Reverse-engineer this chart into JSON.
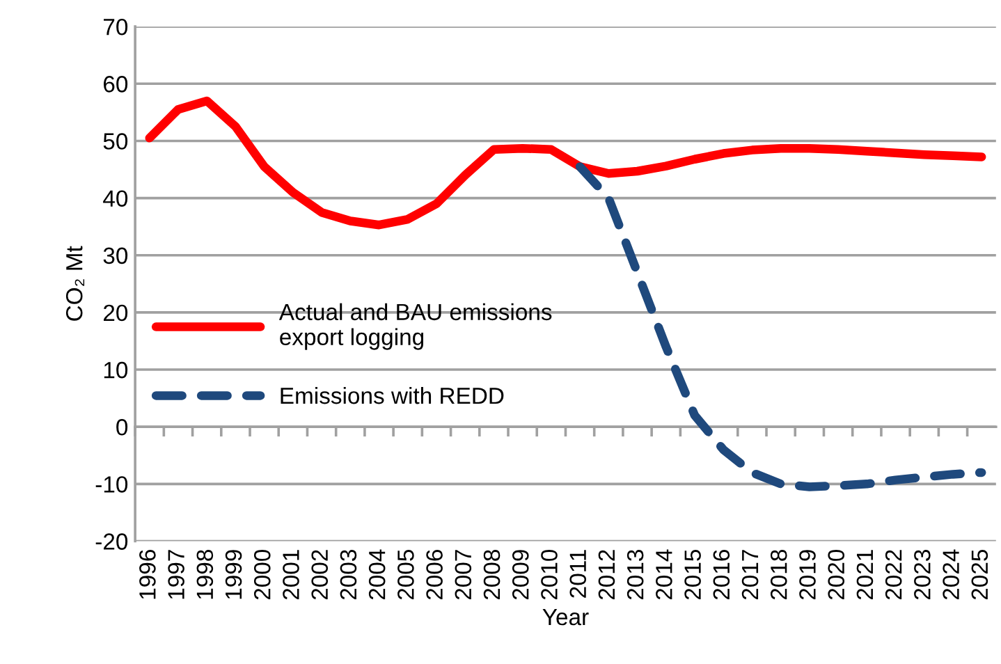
{
  "chart_data": {
    "type": "line",
    "xlabel": "Year",
    "ylabel": "CO₂ Mt",
    "categories": [
      "1996",
      "1997",
      "1998",
      "1999",
      "2000",
      "2001",
      "2002",
      "2003",
      "2004",
      "2005",
      "2006",
      "2007",
      "2008",
      "2009",
      "2010",
      "2011",
      "2012",
      "2013",
      "2014",
      "2015",
      "2016",
      "2017",
      "2018",
      "2019",
      "2020",
      "2021",
      "2022",
      "2023",
      "2024",
      "2025"
    ],
    "series": [
      {
        "name": "Actual and BAU emissions\nexport logging",
        "color": "#ff0000",
        "line_style": "solid",
        "values": [
          50.5,
          55.5,
          57,
          52.5,
          45.5,
          41,
          37.5,
          36,
          35.3,
          36.3,
          39,
          44,
          48.5,
          48.7,
          48.5,
          45.5,
          44.3,
          44.7,
          45.6,
          46.8,
          47.8,
          48.4,
          48.7,
          48.7,
          48.5,
          48.2,
          47.9,
          47.6,
          47.4,
          47.2
        ]
      },
      {
        "name": "Emissions with REDD",
        "color": "#1f497d",
        "line_style": "dashed",
        "values": [
          null,
          null,
          null,
          null,
          null,
          null,
          null,
          null,
          null,
          null,
          null,
          null,
          null,
          null,
          null,
          45.5,
          40,
          27,
          14,
          2,
          -4,
          -8,
          -10,
          -10.5,
          -10.3,
          -10,
          -9.3,
          -8.8,
          -8.3,
          -8
        ]
      }
    ],
    "ylim": [
      -20,
      70
    ],
    "yticks": [
      -20,
      -10,
      0,
      10,
      20,
      30,
      40,
      50,
      60,
      70
    ],
    "grid": "y",
    "legend": "left",
    "marker": "none"
  }
}
